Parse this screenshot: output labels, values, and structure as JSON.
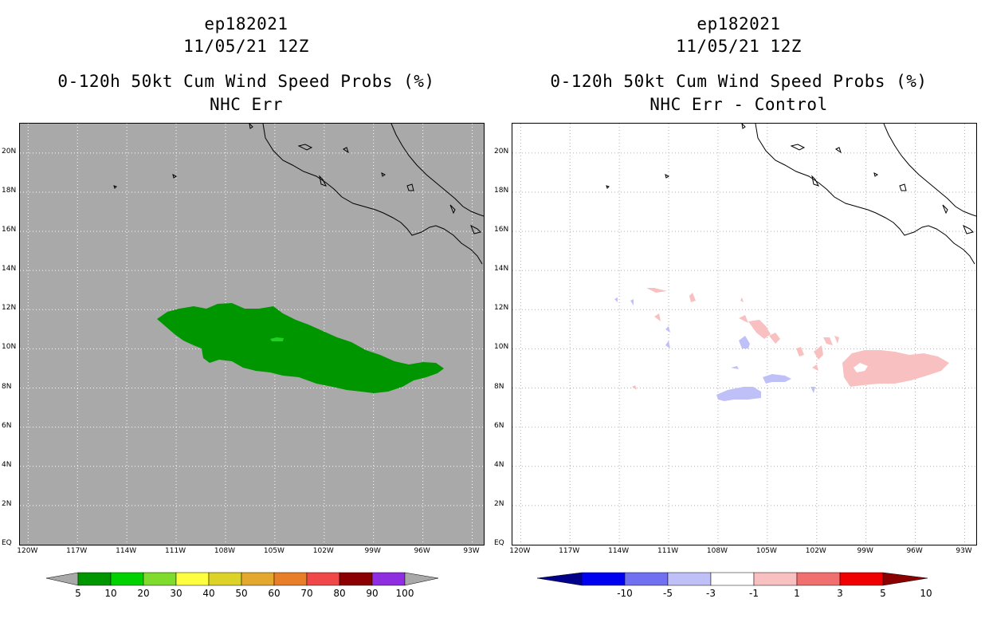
{
  "left_panel": {
    "storm_id": "ep182021",
    "datetime": "11/05/21 12Z",
    "product": "0-120h 50kt Cum Wind Speed Probs (%)",
    "subtitle": "NHC Err",
    "colorbar": {
      "labels": [
        "5",
        "10",
        "20",
        "30",
        "40",
        "50",
        "60",
        "70",
        "80",
        "90",
        "100"
      ],
      "colors": [
        "#009600",
        "#00d200",
        "#7fdb2c",
        "#ffff40",
        "#dcd228",
        "#e3a82d",
        "#e87f28",
        "#f04848",
        "#8b0000",
        "#8e2ee0"
      ],
      "end_color": "#a9a9a9"
    },
    "background_color": "#a9a9a9",
    "fill_color": "#009600",
    "peak_color": "#20d020"
  },
  "right_panel": {
    "storm_id": "ep182021",
    "datetime": "11/05/21 12Z",
    "product": "0-120h 50kt Cum Wind Speed Probs (%)",
    "subtitle": "NHC Err - Control",
    "colorbar": {
      "labels": [
        "-10",
        "-5",
        "-3",
        "-1",
        "1",
        "3",
        "5",
        "10"
      ],
      "colors": [
        "#0000d8",
        "#0000f0",
        "#7070f0",
        "#c0c0f8",
        "#ffffff",
        "#f8c0c0",
        "#f07070",
        "#f00000",
        "#d80000"
      ],
      "end_low_color": "#00008b",
      "end_high_color": "#8b0000"
    },
    "positive_color": "#f8c0c0",
    "negative_color": "#c0c0f8"
  },
  "axes": {
    "lat_labels": [
      "EQ",
      "2N",
      "4N",
      "6N",
      "8N",
      "10N",
      "12N",
      "14N",
      "16N",
      "18N",
      "20N"
    ],
    "lat_values": [
      0,
      2,
      4,
      6,
      8,
      10,
      12,
      14,
      16,
      18,
      20
    ],
    "lon_labels": [
      "120W",
      "117W",
      "114W",
      "111W",
      "108W",
      "105W",
      "102W",
      "99W",
      "96W",
      "93W"
    ],
    "lon_values": [
      -120,
      -117,
      -114,
      -111,
      -108,
      -105,
      -102,
      -99,
      -96,
      -93
    ],
    "lon_range": [
      -120.5,
      -92.3
    ],
    "lat_range": [
      0,
      21.5
    ]
  }
}
